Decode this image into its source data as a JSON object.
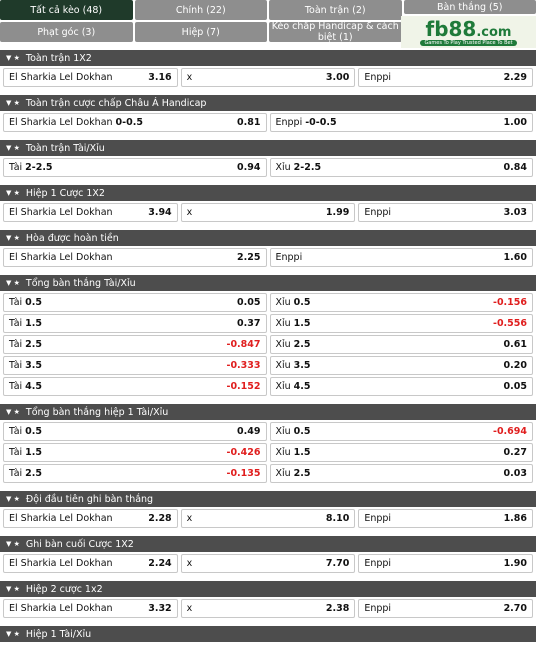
{
  "tabs": [
    "Tất cả kèo (48)",
    "Chính (22)",
    "Toàn trận (2)",
    "Bàn thắng (5)",
    "Phạt góc (3)",
    "Hiệp (7)",
    "Kèo chấp Handicap & cách biệt (1)"
  ],
  "logo": {
    "brand": "fb88",
    "suffix": ".com",
    "tagline": "Games To Play Trusted Place To Bet"
  },
  "sections": [
    {
      "title": "Toàn trận 1X2",
      "rows": [
        [
          {
            "name": "El Sharkia Lel Dokhan",
            "odds": "3.16"
          },
          {
            "name": "x",
            "odds": "3.00"
          },
          {
            "name": "Enppi",
            "odds": "2.29"
          }
        ]
      ]
    },
    {
      "title": "Toàn trận cược chấp Châu Á Handicap",
      "rows": [
        [
          {
            "name": "El Sharkia Lel Dokhan",
            "line": "0-0.5",
            "odds": "0.81"
          },
          {
            "name": "Enppi",
            "line": "-0-0.5",
            "odds": "1.00"
          }
        ]
      ]
    },
    {
      "title": "Toàn trận Tài/Xỉu",
      "rows": [
        [
          {
            "name": "Tài",
            "line": "2-2.5",
            "odds": "0.94"
          },
          {
            "name": "Xỉu",
            "line": "2-2.5",
            "odds": "0.84"
          }
        ]
      ]
    },
    {
      "title": "Hiệp 1 Cược 1X2",
      "rows": [
        [
          {
            "name": "El Sharkia Lel Dokhan",
            "odds": "3.94"
          },
          {
            "name": "x",
            "odds": "1.99"
          },
          {
            "name": "Enppi",
            "odds": "3.03"
          }
        ]
      ]
    },
    {
      "title": "Hòa được hoàn tiền",
      "rows": [
        [
          {
            "name": "El Sharkia Lel Dokhan",
            "odds": "2.25"
          },
          {
            "name": "Enppi",
            "odds": "1.60"
          }
        ]
      ]
    },
    {
      "title": "Tổng bàn thắng Tài/Xỉu",
      "rows": [
        [
          {
            "name": "Tài",
            "line": "0.5",
            "odds": "0.05"
          },
          {
            "name": "Xỉu",
            "line": "0.5",
            "odds": "-0.156"
          }
        ],
        [
          {
            "name": "Tài",
            "line": "1.5",
            "odds": "0.37"
          },
          {
            "name": "Xỉu",
            "line": "1.5",
            "odds": "-0.556"
          }
        ],
        [
          {
            "name": "Tài",
            "line": "2.5",
            "odds": "-0.847"
          },
          {
            "name": "Xỉu",
            "line": "2.5",
            "odds": "0.61"
          }
        ],
        [
          {
            "name": "Tài",
            "line": "3.5",
            "odds": "-0.333"
          },
          {
            "name": "Xỉu",
            "line": "3.5",
            "odds": "0.20"
          }
        ],
        [
          {
            "name": "Tài",
            "line": "4.5",
            "odds": "-0.152"
          },
          {
            "name": "Xỉu",
            "line": "4.5",
            "odds": "0.05"
          }
        ]
      ]
    },
    {
      "title": "Tổng bàn thắng hiệp 1 Tài/Xỉu",
      "rows": [
        [
          {
            "name": "Tài",
            "line": "0.5",
            "odds": "0.49"
          },
          {
            "name": "Xỉu",
            "line": "0.5",
            "odds": "-0.694"
          }
        ],
        [
          {
            "name": "Tài",
            "line": "1.5",
            "odds": "-0.426"
          },
          {
            "name": "Xỉu",
            "line": "1.5",
            "odds": "0.27"
          }
        ],
        [
          {
            "name": "Tài",
            "line": "2.5",
            "odds": "-0.135"
          },
          {
            "name": "Xỉu",
            "line": "2.5",
            "odds": "0.03"
          }
        ]
      ]
    },
    {
      "title": "Đội đầu tiên ghi bàn thắng",
      "rows": [
        [
          {
            "name": "El Sharkia Lel Dokhan",
            "odds": "2.28"
          },
          {
            "name": "x",
            "odds": "8.10"
          },
          {
            "name": "Enppi",
            "odds": "1.86"
          }
        ]
      ]
    },
    {
      "title": "Ghi bàn cuối Cược 1X2",
      "rows": [
        [
          {
            "name": "El Sharkia Lel Dokhan",
            "odds": "2.24"
          },
          {
            "name": "x",
            "odds": "7.70"
          },
          {
            "name": "Enppi",
            "odds": "1.90"
          }
        ]
      ]
    },
    {
      "title": "Hiệp 2 cược 1x2",
      "rows": [
        [
          {
            "name": "El Sharkia Lel Dokhan",
            "odds": "3.32"
          },
          {
            "name": "x",
            "odds": "2.38"
          },
          {
            "name": "Enppi",
            "odds": "2.70"
          }
        ]
      ]
    },
    {
      "title": "Hiệp 1 Tài/Xỉu",
      "rows": []
    }
  ]
}
